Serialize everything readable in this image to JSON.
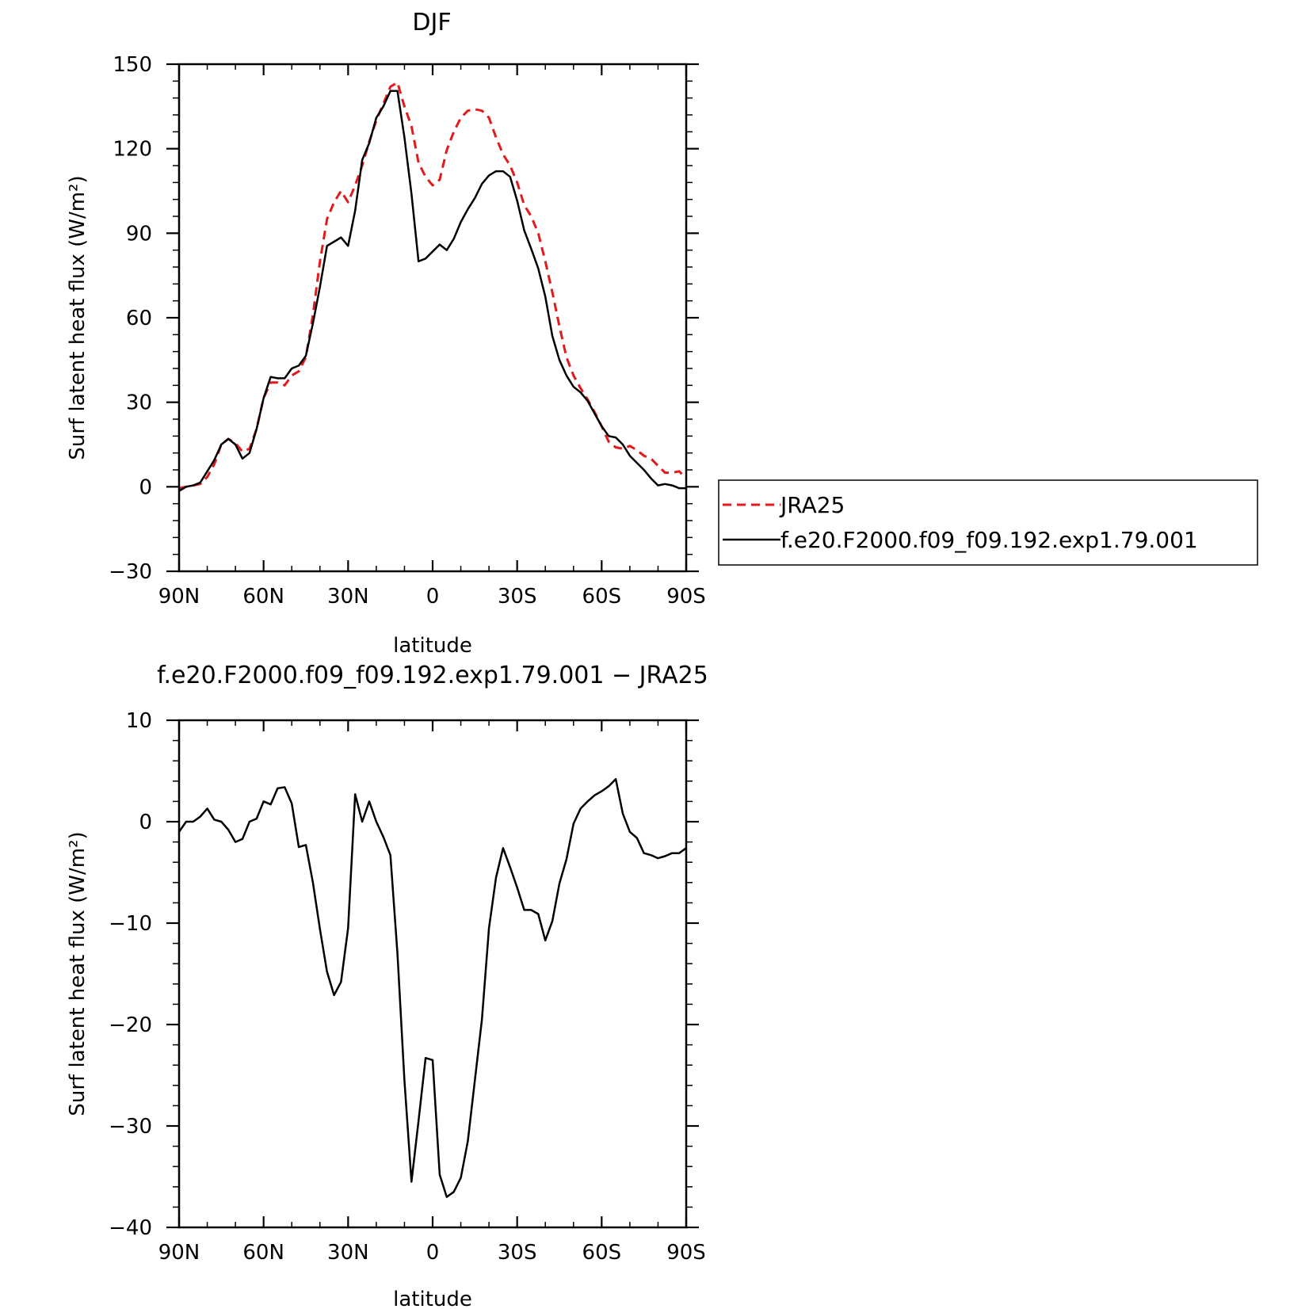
{
  "chart_data": [
    {
      "type": "line",
      "title": "DJF",
      "xlabel": "latitude",
      "ylabel": "Surf latent heat flux (W/m²)",
      "ylim": [
        -30,
        150
      ],
      "xlim": [
        -90,
        90
      ],
      "x_direction": "90N to 90S",
      "yticks": [
        -30,
        0,
        30,
        60,
        90,
        120,
        150
      ],
      "ytick_labels": [
        "−30",
        "0",
        "30",
        "60",
        "90",
        "120",
        "150"
      ],
      "xticks": [
        -90,
        -60,
        -30,
        0,
        30,
        60,
        90
      ],
      "xtick_labels": [
        "90N",
        "60N",
        "30N",
        "0",
        "30S",
        "60S",
        "90S"
      ],
      "legend_position": "right",
      "series": [
        {
          "name": "JRA25",
          "color": "#e31a1c",
          "style": "dashed",
          "x": [
            -90,
            -87.5,
            -85,
            -82.5,
            -80,
            -77.5,
            -75,
            -72.5,
            -70,
            -67.5,
            -65,
            -62.5,
            -60,
            -57.5,
            -55,
            -52.5,
            -50,
            -47.5,
            -45,
            -42.5,
            -40,
            -37.5,
            -35,
            -32.5,
            -30,
            -27.5,
            -25,
            -22.5,
            -20,
            -17.5,
            -15,
            -12.5,
            -10,
            -7.5,
            -5,
            -2.5,
            0,
            2.5,
            5,
            7.5,
            10,
            12.5,
            15,
            17.5,
            20,
            22.5,
            25,
            27.5,
            30,
            32.5,
            35,
            37.5,
            40,
            42.5,
            45,
            47.5,
            50,
            52.5,
            55,
            57.5,
            60,
            62.5,
            65,
            67.5,
            70,
            72.5,
            75,
            77.5,
            80,
            82.5,
            85,
            87.5,
            90
          ],
          "y": [
            -0.5,
            0,
            0.5,
            1,
            3.5,
            8,
            15,
            17,
            15.5,
            12.5,
            13.5,
            20.5,
            31.5,
            37,
            37,
            36,
            39.5,
            41,
            46,
            61,
            80,
            95,
            101,
            105,
            101,
            107,
            114,
            122.5,
            130,
            136,
            142,
            143.5,
            135,
            128,
            115,
            110,
            107,
            109,
            119.5,
            126,
            131,
            133.5,
            134,
            133.5,
            131,
            124,
            118,
            114,
            108,
            100,
            96,
            90,
            80,
            69,
            57,
            46,
            39.5,
            35,
            31,
            26.5,
            21.5,
            16,
            14,
            13.5,
            14.5,
            13,
            11,
            10,
            7.5,
            5,
            5,
            5.5,
            3
          ]
        },
        {
          "name": "f.e20.F2000.f09_f09.192.exp1.79.001",
          "color": "#000000",
          "style": "solid",
          "x": [
            -90,
            -87.5,
            -85,
            -82.5,
            -80,
            -77.5,
            -75,
            -72.5,
            -70,
            -67.5,
            -65,
            -62.5,
            -60,
            -57.5,
            -55,
            -52.5,
            -50,
            -47.5,
            -45,
            -42.5,
            -40,
            -37.5,
            -35,
            -32.5,
            -30,
            -27.5,
            -25,
            -22.5,
            -20,
            -17.5,
            -15,
            -12.5,
            -10,
            -7.5,
            -5,
            -2.5,
            0,
            2.5,
            5,
            7.5,
            10,
            12.5,
            15,
            17.5,
            20,
            22.5,
            25,
            27.5,
            30,
            32.5,
            35,
            37.5,
            40,
            42.5,
            45,
            47.5,
            50,
            52.5,
            55,
            57.5,
            60,
            62.5,
            65,
            67.5,
            70,
            72.5,
            75,
            77.5,
            80,
            82.5,
            85,
            87.5,
            90
          ],
          "y": [
            -1.5,
            0,
            0.5,
            1.5,
            5.5,
            9.5,
            15,
            17,
            15,
            10,
            12,
            20.5,
            31.5,
            39,
            38.5,
            38.5,
            42,
            43,
            46.5,
            58,
            71,
            85.5,
            87,
            88.5,
            85.5,
            98,
            116,
            122,
            131,
            135,
            140.5,
            140.5,
            124,
            104,
            80,
            81,
            83.5,
            86,
            84,
            88,
            94,
            98.5,
            102.5,
            107.5,
            110.5,
            112,
            112,
            110,
            101.5,
            91,
            84.5,
            77.5,
            67.5,
            53.5,
            45,
            39.5,
            35.5,
            33.5,
            30.5,
            26,
            21.5,
            18,
            17.5,
            15,
            11,
            8.5,
            6,
            3,
            0.5,
            1,
            0.5,
            -0.5,
            -0.5
          ]
        }
      ]
    },
    {
      "type": "line",
      "title": "f.e20.F2000.f09_f09.192.exp1.79.001 − JRA25",
      "xlabel": "latitude",
      "ylabel": "Surf latent heat flux (W/m²)",
      "ylim": [
        -40,
        10
      ],
      "xlim": [
        -90,
        90
      ],
      "x_direction": "90N to 90S",
      "yticks": [
        -40,
        -30,
        -20,
        -10,
        0,
        10
      ],
      "ytick_labels": [
        "−40",
        "−30",
        "−20",
        "−10",
        "0",
        "10"
      ],
      "xticks": [
        -90,
        -60,
        -30,
        0,
        30,
        60,
        90
      ],
      "xtick_labels": [
        "90N",
        "60N",
        "30N",
        "0",
        "30S",
        "60S",
        "90S"
      ],
      "series": [
        {
          "color": "#000000",
          "style": "solid",
          "x": [
            -90,
            -87.5,
            -85,
            -82.5,
            -80,
            -77.5,
            -75,
            -72.5,
            -70,
            -67.5,
            -65,
            -62.5,
            -60,
            -57.5,
            -55,
            -52.5,
            -50,
            -47.5,
            -45,
            -42.5,
            -40,
            -37.5,
            -35,
            -32.5,
            -30,
            -27.5,
            -25,
            -22.5,
            -20,
            -17.5,
            -15,
            -12.5,
            -10,
            -7.5,
            -5,
            -2.5,
            0,
            2.5,
            5,
            7.5,
            10,
            12.5,
            15,
            17.5,
            20,
            22.5,
            25,
            27.5,
            30,
            32.5,
            35,
            37.5,
            40,
            42.5,
            45,
            47.5,
            50,
            52.5,
            55,
            57.5,
            60,
            62.5,
            65,
            67.5,
            70,
            72.5,
            75,
            77.5,
            80,
            82.5,
            85,
            87.5,
            90
          ],
          "y": [
            -1,
            0,
            0,
            0.5,
            1.3,
            0.2,
            0,
            -0.8,
            -2,
            -1.7,
            0,
            0.3,
            2,
            1.7,
            3.3,
            3.4,
            1.8,
            -2.5,
            -2.3,
            -6,
            -10.6,
            -14.8,
            -17.1,
            -15.8,
            -10.5,
            2.7,
            0,
            2,
            0,
            -1.5,
            -3.3,
            -13,
            -25.5,
            -35.5,
            -29.5,
            -23.3,
            -23.5,
            -34.8,
            -37,
            -36.5,
            -35.1,
            -31.5,
            -25.5,
            -19.5,
            -10.5,
            -5.5,
            -2.6,
            -4.5,
            -6.5,
            -8.7,
            -8.7,
            -9.1,
            -11.7,
            -9.8,
            -6.1,
            -3.7,
            -0.2,
            1.3,
            2,
            2.6,
            3,
            3.5,
            4.2,
            0.8,
            -1,
            -1.6,
            -3.1,
            -3.3,
            -3.6,
            -3.4,
            -3.1,
            -3.1,
            -2.6
          ]
        }
      ]
    }
  ]
}
